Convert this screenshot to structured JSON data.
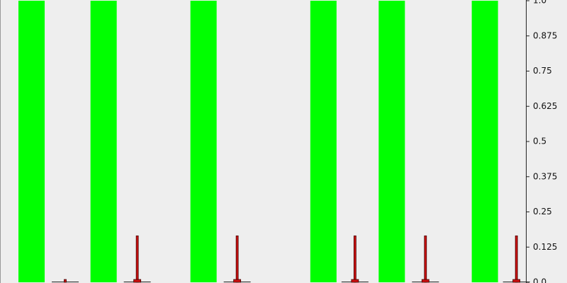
{
  "chart_data": {
    "type": "bar",
    "ylim": [
      0,
      1
    ],
    "yticks": [
      0.125,
      0.25,
      0.375,
      0.5,
      0.625,
      0.75,
      0.875,
      {
        "value": 0,
        "label": "0.0"
      },
      {
        "value": 1,
        "label": "1.0"
      }
    ],
    "xlim": [
      0,
      100
    ],
    "series": [
      {
        "color": "#00ff00",
        "x": [
          6.0,
          19.7,
          38.7,
          61.5,
          74.5,
          92.2
        ],
        "values": [
          1,
          1,
          1,
          1,
          1,
          1
        ]
      },
      {
        "color": "#cc1111",
        "x": [
          12.4,
          26.1,
          45.1,
          67.5,
          80.9,
          98.2
        ],
        "values": [
          0,
          0.01,
          0.01,
          0.01,
          0.01,
          0.01
        ],
        "stems": [
          0.01,
          0.165,
          0.165,
          0.165,
          0.165,
          0.165
        ]
      }
    ]
  }
}
